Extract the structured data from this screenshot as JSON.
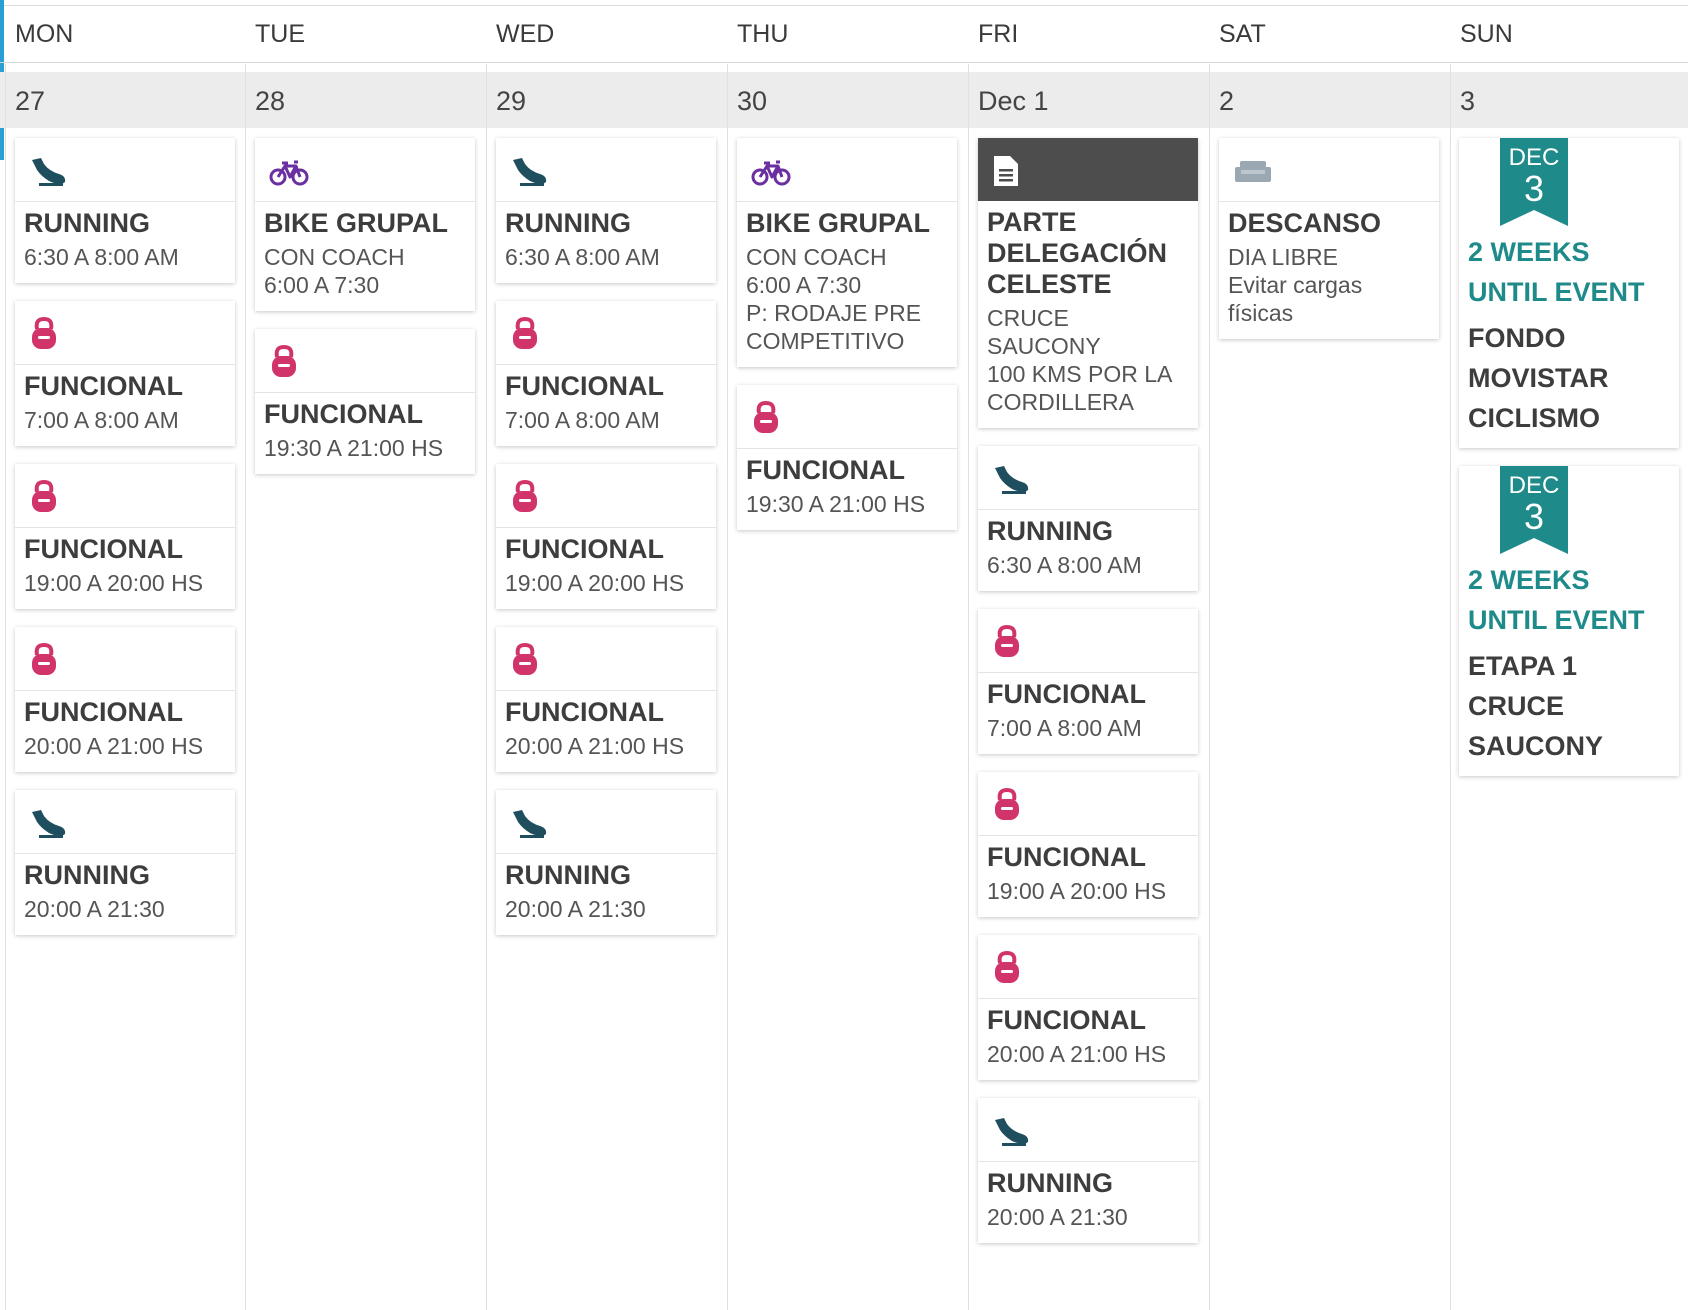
{
  "days": [
    {
      "name": "MON",
      "date": "27"
    },
    {
      "name": "TUE",
      "date": "28"
    },
    {
      "name": "WED",
      "date": "29"
    },
    {
      "name": "THU",
      "date": "30"
    },
    {
      "name": "FRI",
      "date": "Dec 1"
    },
    {
      "name": "SAT",
      "date": "2"
    },
    {
      "name": "SUN",
      "date": "3"
    }
  ],
  "colors": {
    "running": "#1f4f5f",
    "bike": "#6a2fa0",
    "kettlebell": "#d1336b",
    "rest": "#9aa8b4",
    "event_teal": "#1e8a8a",
    "note_dark": "#4d4d4d"
  },
  "workouts": {
    "mon": [
      {
        "icon": "running-shoe-icon",
        "title": "RUNNING",
        "lines": [
          "6:30 A 8:00 AM"
        ]
      },
      {
        "icon": "kettlebell-icon",
        "title": "FUNCIONAL",
        "lines": [
          "7:00 A 8:00 AM"
        ]
      },
      {
        "icon": "kettlebell-icon",
        "title": "FUNCIONAL",
        "lines": [
          "19:00 A 20:00 HS"
        ]
      },
      {
        "icon": "kettlebell-icon",
        "title": "FUNCIONAL",
        "lines": [
          "20:00 A 21:00 HS"
        ]
      },
      {
        "icon": "running-shoe-icon",
        "title": "RUNNING",
        "lines": [
          "20:00 A 21:30"
        ]
      }
    ],
    "tue": [
      {
        "icon": "bike-icon",
        "title": "BIKE GRUPAL",
        "lines": [
          "CON COACH",
          "6:00 A 7:30"
        ]
      },
      {
        "icon": "kettlebell-icon",
        "title": "FUNCIONAL",
        "lines": [
          "19:30 A 21:00 HS"
        ]
      }
    ],
    "wed": [
      {
        "icon": "running-shoe-icon",
        "title": "RUNNING",
        "lines": [
          "6:30 A 8:00 AM"
        ]
      },
      {
        "icon": "kettlebell-icon",
        "title": "FUNCIONAL",
        "lines": [
          "7:00 A 8:00 AM"
        ]
      },
      {
        "icon": "kettlebell-icon",
        "title": "FUNCIONAL",
        "lines": [
          "19:00 A 20:00 HS"
        ]
      },
      {
        "icon": "kettlebell-icon",
        "title": "FUNCIONAL",
        "lines": [
          "20:00 A 21:00 HS"
        ]
      },
      {
        "icon": "running-shoe-icon",
        "title": "RUNNING",
        "lines": [
          "20:00 A 21:30"
        ]
      }
    ],
    "thu": [
      {
        "icon": "bike-icon",
        "title": "BIKE GRUPAL",
        "lines": [
          "CON COACH",
          "6:00 A 7:30",
          "P: RODAJE PRE",
          "COMPETITIVO"
        ]
      },
      {
        "icon": "kettlebell-icon",
        "title": "FUNCIONAL",
        "lines": [
          "19:30 A 21:00 HS"
        ]
      }
    ],
    "fri": [
      {
        "icon": "document-icon",
        "title": "PARTE DELEGACIÓN CELESTE",
        "lines": [
          "CRUCE",
          "SAUCONY",
          "100 KMS POR LA",
          "CORDILLERA"
        ],
        "dark": true
      },
      {
        "icon": "running-shoe-icon",
        "title": "RUNNING",
        "lines": [
          "6:30 A 8:00 AM"
        ]
      },
      {
        "icon": "kettlebell-icon",
        "title": "FUNCIONAL",
        "lines": [
          "7:00 A 8:00 AM"
        ]
      },
      {
        "icon": "kettlebell-icon",
        "title": "FUNCIONAL",
        "lines": [
          "19:00 A 20:00 HS"
        ]
      },
      {
        "icon": "kettlebell-icon",
        "title": "FUNCIONAL",
        "lines": [
          "20:00 A 21:00 HS"
        ]
      },
      {
        "icon": "running-shoe-icon",
        "title": "RUNNING",
        "lines": [
          "20:00 A 21:30"
        ]
      }
    ],
    "sat": [
      {
        "icon": "sofa-icon",
        "title": "DESCANSO",
        "lines": [
          "DIA LIBRE",
          "Evitar cargas",
          "físicas"
        ]
      }
    ]
  },
  "events": [
    {
      "month": "DEC",
      "day": "3",
      "weeks_lines": [
        "2 WEEKS",
        "UNTIL EVENT"
      ],
      "name_lines": [
        "FONDO",
        "MOVISTAR",
        "CICLISMO"
      ]
    },
    {
      "month": "DEC",
      "day": "3",
      "weeks_lines": [
        "2 WEEKS",
        "UNTIL EVENT"
      ],
      "name_lines": [
        "ETAPA 1",
        "CRUCE",
        "SAUCONY"
      ]
    }
  ]
}
